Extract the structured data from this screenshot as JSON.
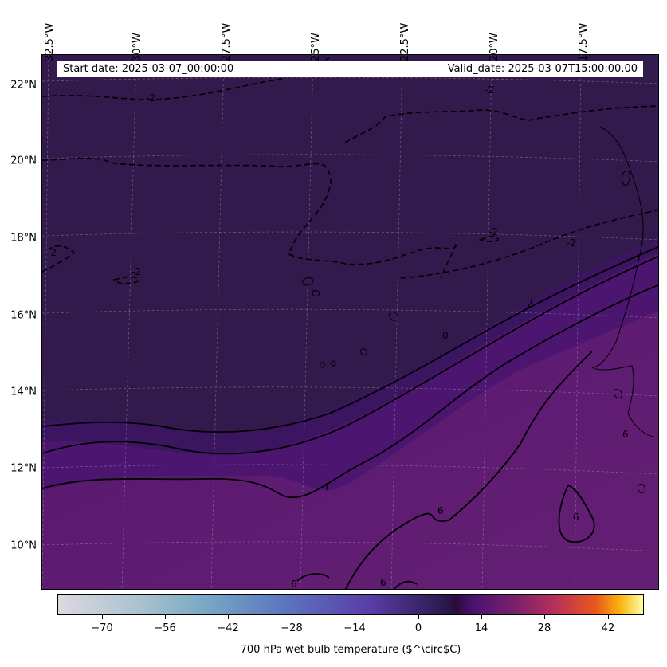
{
  "banner": {
    "start_date": "Start date: 2025-03-07_00:00:00",
    "valid_date": "Valid_date: 2025-03-07T15:00:00.00"
  },
  "lat_labels": [
    "22°N",
    "20°N",
    "18°N",
    "16°N",
    "14°N",
    "12°N",
    "10°N"
  ],
  "lon_labels": [
    "32.5°W",
    "30°W",
    "27.5°W",
    "25°W",
    "22.5°W",
    "20°W",
    "17.5°W"
  ],
  "contour_labels": [
    "-2",
    "-2",
    "-2",
    "-2",
    "-2",
    "-2",
    "0",
    "2",
    "4",
    "6",
    "6",
    "6",
    "6",
    "6"
  ],
  "colorbar": {
    "ticks": [
      "−70",
      "−56",
      "−42",
      "−28",
      "−14",
      "0",
      "14",
      "28",
      "42"
    ],
    "label": "700 hPa wet bulb temperature ($^\\circ$C)",
    "range": [
      -80,
      50
    ],
    "colormap": "inferno-like"
  },
  "colors": {
    "cold_region": "#2e1a48",
    "warm_region": "#5e1e72",
    "band": "#4a1470"
  }
}
